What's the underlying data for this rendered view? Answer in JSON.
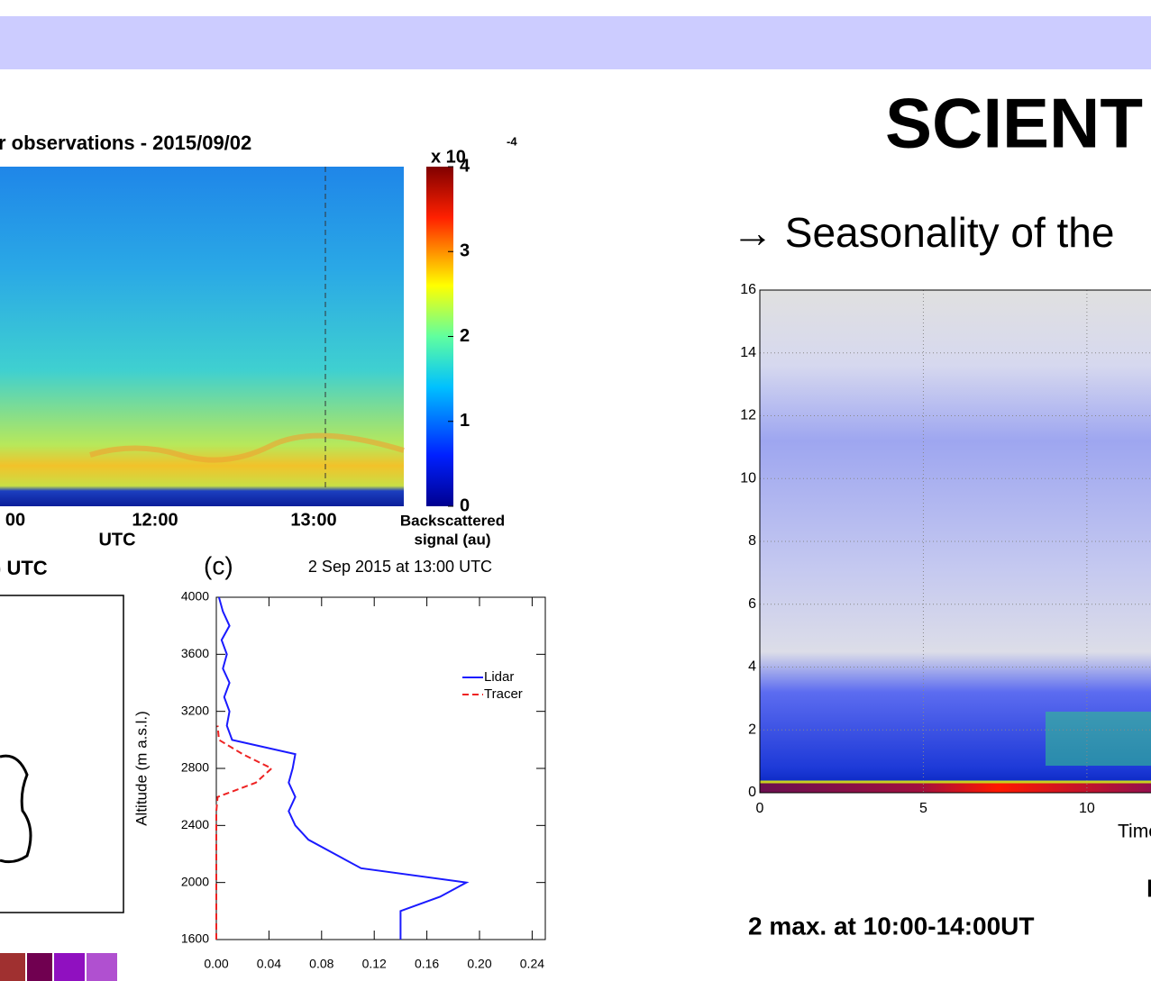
{
  "title": "SCIENT",
  "subtitle": "→ Seasonality of the",
  "caption_top": "I",
  "caption": "2 max. at 10:00-14:00UT",
  "chart_data": [
    {
      "type": "heatmap",
      "title": "r observations - 2015/09/02",
      "xtick_labels": [
        "00",
        "12:00",
        "13:00"
      ],
      "xlabel": "UTC",
      "colorbar_multiplier": "x 10",
      "colorbar_exponent": "-4",
      "colorbar_label": [
        "Backscattered",
        "signal (au)"
      ],
      "colorbar_lim": [
        0,
        4
      ],
      "colorbar_ticks": [
        0,
        1,
        2,
        3,
        4
      ]
    },
    {
      "type": "map",
      "title": ") UTC"
    },
    {
      "type": "line",
      "panel_label": "(c)",
      "title": "2 Sep  2015 at 13:00 UTC",
      "ylabel": "Altitude (m a.s.l.)",
      "xlim": [
        0,
        0.25
      ],
      "xticks": [
        {
          "value": 0,
          "label": "0.00"
        },
        {
          "value": 0.04,
          "label": "0.04"
        },
        {
          "value": 0.08,
          "label": "0.08"
        },
        {
          "value": 0.12,
          "label": "0.12"
        },
        {
          "value": 0.16,
          "label": "0.16"
        },
        {
          "value": 0.2,
          "label": "0.20"
        },
        {
          "value": 0.24,
          "label": "0.24"
        }
      ],
      "ylim": [
        1600,
        4000
      ],
      "yticks": [
        1600,
        2000,
        2400,
        2800,
        3200,
        3600,
        4000
      ],
      "y": [
        1600,
        1700,
        1800,
        1900,
        2000,
        2100,
        2200,
        2300,
        2400,
        2500,
        2600,
        2700,
        2800,
        2900,
        3000,
        3100,
        3200,
        3300,
        3400,
        3500,
        3600,
        3700,
        3800,
        3900,
        4000
      ],
      "series": [
        {
          "name": "Lidar",
          "color": "#1a1aff",
          "dash": "none",
          "values": [
            0.14,
            0.14,
            0.14,
            0.17,
            0.19,
            0.11,
            0.09,
            0.07,
            0.06,
            0.055,
            0.06,
            0.055,
            0.058,
            0.06,
            0.012,
            0.008,
            0.01,
            0.006,
            0.01,
            0.005,
            0.008,
            0.004,
            0.01,
            0.005,
            0.002
          ]
        },
        {
          "name": "Tracer",
          "color": "#ee2222",
          "dash": "7 4",
          "values": [
            0,
            0,
            0,
            0,
            0,
            0,
            0,
            0,
            0,
            0,
            0.001,
            0.03,
            0.042,
            0.02,
            0.002,
            0.001,
            null,
            null,
            null,
            null,
            null,
            null,
            null,
            null,
            null
          ]
        }
      ],
      "legend": "upper right"
    },
    {
      "type": "heatmap",
      "xlabel": "Time",
      "xlim": [
        0,
        11.96
      ],
      "xticks": [
        0,
        5,
        10
      ],
      "ylim": [
        0,
        16
      ],
      "yticks": [
        0,
        2,
        4,
        6,
        8,
        10,
        12,
        14,
        16
      ],
      "grid": true
    }
  ]
}
